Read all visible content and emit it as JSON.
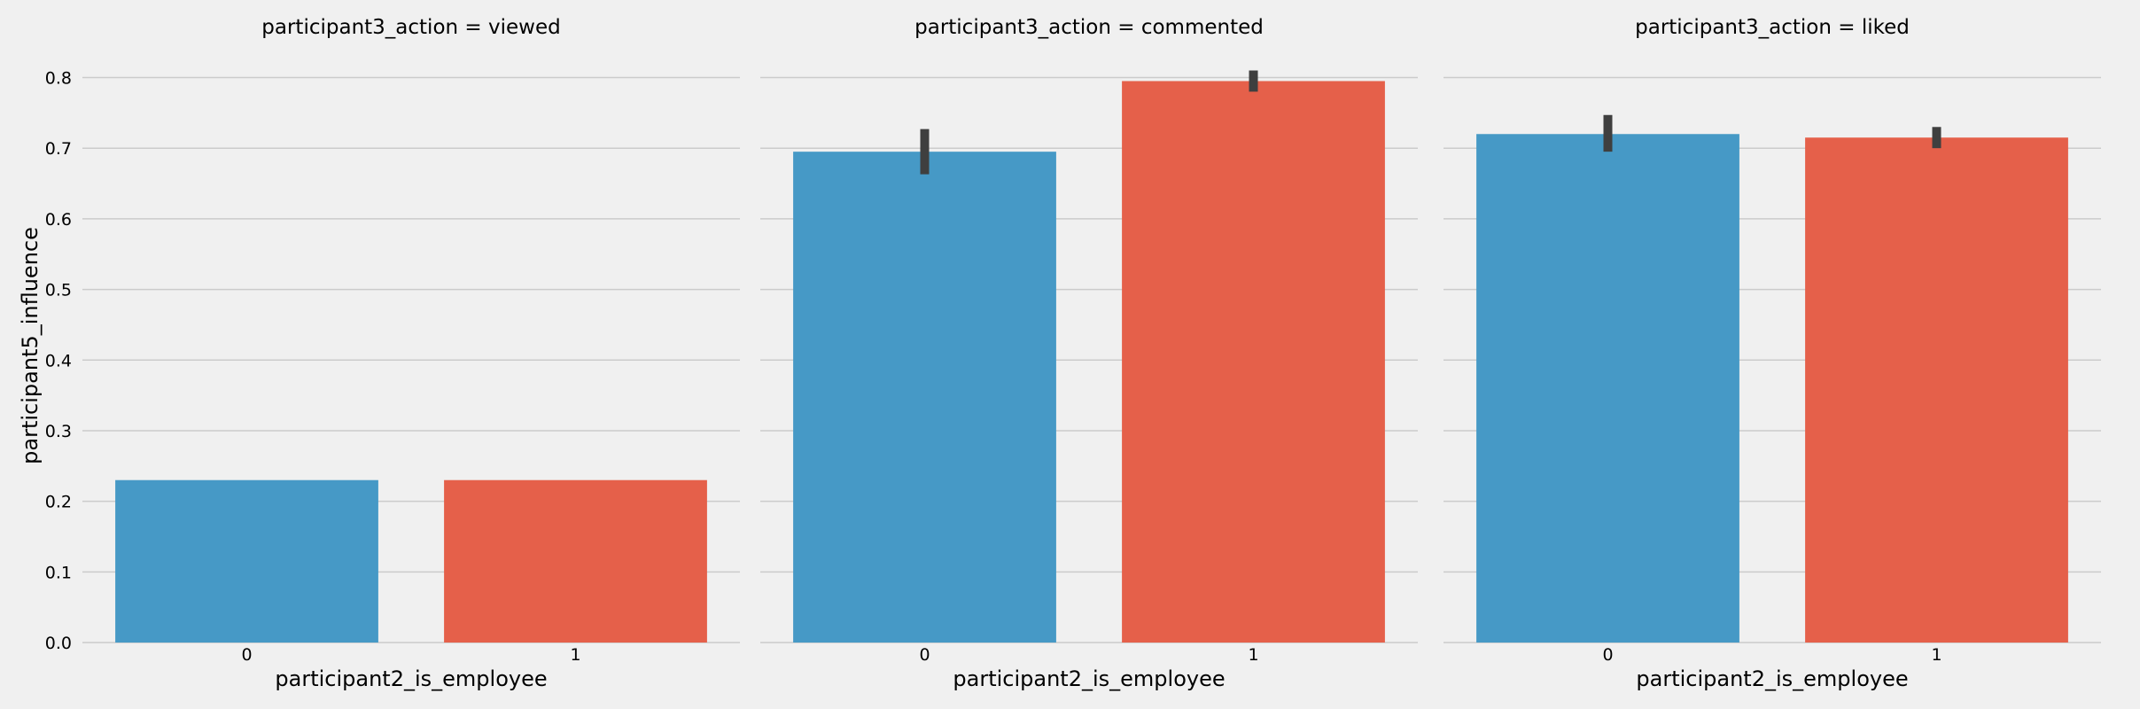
{
  "colors": {
    "blue": "#4699c6",
    "red": "#e5604a",
    "background": "#f0f0f0",
    "grid": "#cbcbcb",
    "errorbar": "#3f3f3f"
  },
  "chart_data": {
    "type": "bar",
    "ylabel": "participant5_influence",
    "ylim": [
      0,
      0.8
    ],
    "yticks": [
      "0.0",
      "0.1",
      "0.2",
      "0.3",
      "0.4",
      "0.5",
      "0.6",
      "0.7",
      "0.8"
    ],
    "grid": true,
    "panels": [
      {
        "title": "participant3_action = viewed",
        "xlabel": "participant2_is_employee",
        "categories": [
          "0",
          "1"
        ],
        "values": [
          0.23,
          0.23
        ],
        "ci": [
          [
            0.23,
            0.23
          ],
          [
            0.23,
            0.23
          ]
        ]
      },
      {
        "title": "participant3_action = commented",
        "xlabel": "participant2_is_employee",
        "categories": [
          "0",
          "1"
        ],
        "values": [
          0.695,
          0.795
        ],
        "ci": [
          [
            0.663,
            0.727
          ],
          [
            0.78,
            0.81
          ]
        ]
      },
      {
        "title": "participant3_action = liked",
        "xlabel": "participant2_is_employee",
        "categories": [
          "0",
          "1"
        ],
        "values": [
          0.72,
          0.715
        ],
        "ci": [
          [
            0.695,
            0.747
          ],
          [
            0.7,
            0.73
          ]
        ]
      }
    ]
  }
}
